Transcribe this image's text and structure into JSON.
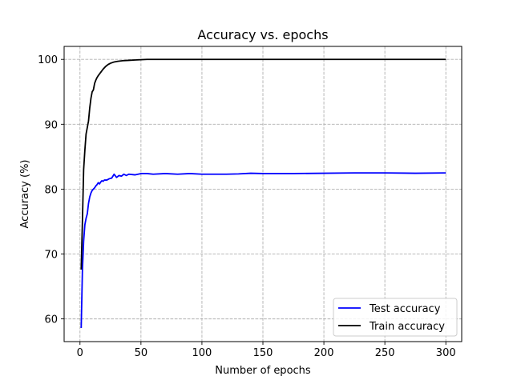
{
  "chart_data": {
    "type": "line",
    "title": "Accuracy vs. epochs",
    "xlabel": "Number of epochs",
    "ylabel": "Accuracy (%)",
    "xlim": [
      -13,
      313
    ],
    "ylim": [
      56.5,
      102
    ],
    "xticks": [
      0,
      50,
      100,
      150,
      200,
      250,
      300
    ],
    "yticks": [
      60,
      70,
      80,
      90,
      100
    ],
    "grid": true,
    "legend_position": "lower-right",
    "series": [
      {
        "name": "Test accuracy",
        "color": "#0000ff",
        "points": [
          [
            1,
            58.6
          ],
          [
            2,
            67.5
          ],
          [
            3,
            72.0
          ],
          [
            4,
            74.5
          ],
          [
            5,
            75.5
          ],
          [
            6,
            76.2
          ],
          [
            7,
            77.8
          ],
          [
            8,
            78.8
          ],
          [
            9,
            79.4
          ],
          [
            10,
            79.8
          ],
          [
            11,
            80.0
          ],
          [
            12,
            80.2
          ],
          [
            13,
            80.5
          ],
          [
            14,
            80.7
          ],
          [
            15,
            81.0
          ],
          [
            16,
            80.8
          ],
          [
            17,
            81.1
          ],
          [
            18,
            81.3
          ],
          [
            19,
            81.2
          ],
          [
            20,
            81.4
          ],
          [
            22,
            81.4
          ],
          [
            24,
            81.6
          ],
          [
            26,
            81.7
          ],
          [
            28,
            82.3
          ],
          [
            30,
            81.8
          ],
          [
            32,
            82.1
          ],
          [
            34,
            82.0
          ],
          [
            36,
            82.3
          ],
          [
            38,
            82.1
          ],
          [
            40,
            82.3
          ],
          [
            45,
            82.2
          ],
          [
            50,
            82.4
          ],
          [
            55,
            82.4
          ],
          [
            60,
            82.3
          ],
          [
            70,
            82.4
          ],
          [
            80,
            82.3
          ],
          [
            90,
            82.4
          ],
          [
            100,
            82.3
          ],
          [
            110,
            82.3
          ],
          [
            120,
            82.3
          ],
          [
            130,
            82.35
          ],
          [
            140,
            82.45
          ],
          [
            150,
            82.4
          ],
          [
            175,
            82.4
          ],
          [
            200,
            82.45
          ],
          [
            225,
            82.5
          ],
          [
            250,
            82.5
          ],
          [
            275,
            82.45
          ],
          [
            300,
            82.5
          ]
        ]
      },
      {
        "name": "Train accuracy",
        "color": "#000000",
        "points": [
          [
            1,
            67.6
          ],
          [
            2,
            75.0
          ],
          [
            3,
            83.0
          ],
          [
            4,
            86.0
          ],
          [
            5,
            88.5
          ],
          [
            6,
            89.5
          ],
          [
            7,
            90.5
          ],
          [
            8,
            92.5
          ],
          [
            9,
            94.0
          ],
          [
            10,
            95.0
          ],
          [
            11,
            95.3
          ],
          [
            12,
            96.3
          ],
          [
            13,
            96.8
          ],
          [
            14,
            97.2
          ],
          [
            15,
            97.5
          ],
          [
            17,
            98.0
          ],
          [
            19,
            98.5
          ],
          [
            21,
            98.9
          ],
          [
            23,
            99.2
          ],
          [
            25,
            99.4
          ],
          [
            28,
            99.6
          ],
          [
            31,
            99.7
          ],
          [
            35,
            99.8
          ],
          [
            40,
            99.85
          ],
          [
            45,
            99.9
          ],
          [
            50,
            99.95
          ],
          [
            55,
            100.0
          ],
          [
            60,
            100.0
          ],
          [
            100,
            100.0
          ],
          [
            150,
            100.0
          ],
          [
            200,
            100.0
          ],
          [
            250,
            100.0
          ],
          [
            300,
            100.0
          ]
        ]
      }
    ]
  }
}
